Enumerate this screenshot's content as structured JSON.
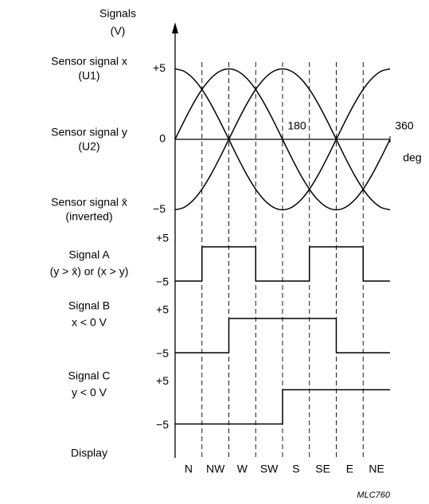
{
  "y_axis_label": [
    "Signals",
    "(V)"
  ],
  "sensor_plot": {
    "xlim": [
      0,
      360
    ],
    "ylim": [
      -5,
      5
    ],
    "yticks": [
      {
        "value": 5,
        "label": "+5"
      },
      0,
      {
        "value": -5,
        "label": "−5"
      }
    ],
    "xticks": [
      180,
      360
    ],
    "x_unit": "deg",
    "x": [
      0,
      15,
      30,
      45,
      60,
      75,
      90,
      105,
      120,
      135,
      150,
      165,
      180,
      195,
      210,
      225,
      240,
      255,
      270,
      285,
      300,
      315,
      330,
      345,
      360
    ],
    "series": [
      {
        "name": "Sensor signal x",
        "sublabel": "(U1)",
        "values": [
          5,
          4.83,
          4.33,
          3.54,
          2.5,
          1.29,
          0,
          -1.29,
          -2.5,
          -3.54,
          -4.33,
          -4.83,
          -5,
          -4.83,
          -4.33,
          -3.54,
          -2.5,
          -1.29,
          0,
          1.29,
          2.5,
          3.54,
          4.33,
          4.83,
          5
        ]
      },
      {
        "name": "Sensor signal y",
        "sublabel": "(U2)",
        "values": [
          0,
          1.29,
          2.5,
          3.54,
          4.33,
          4.83,
          5,
          4.83,
          4.33,
          3.54,
          2.5,
          1.29,
          0,
          -1.29,
          -2.5,
          -3.54,
          -4.33,
          -4.83,
          -5,
          -4.83,
          -4.33,
          -3.54,
          -2.5,
          -1.29,
          0
        ]
      },
      {
        "name": "Sensor signal x̄",
        "sublabel": "(inverted)",
        "values": [
          -5,
          -4.83,
          -4.33,
          -3.54,
          -2.5,
          -1.29,
          0,
          1.29,
          2.5,
          3.54,
          4.33,
          4.83,
          5,
          4.83,
          4.33,
          3.54,
          2.5,
          1.29,
          0,
          -1.29,
          -2.5,
          -3.54,
          -4.33,
          -4.83,
          -5
        ]
      }
    ]
  },
  "sector_edges": [
    0,
    45,
    90,
    135,
    180,
    225,
    270,
    315,
    360
  ],
  "sectors": [
    "N",
    "NW",
    "W",
    "SW",
    "S",
    "SE",
    "E",
    "NE"
  ],
  "signals": [
    {
      "name": "Signal A",
      "condition": "(y > x̄) or (x > y)",
      "yticks": [
        {
          "value": 5,
          "label": "+5"
        },
        {
          "value": -5,
          "label": "−5"
        }
      ],
      "levels": [
        -5,
        5,
        5,
        -5,
        -5,
        5,
        5,
        -5
      ]
    },
    {
      "name": "Signal B",
      "condition": "x < 0 V",
      "yticks": [
        {
          "value": 5,
          "label": "+5"
        },
        {
          "value": -5,
          "label": "−5"
        }
      ],
      "levels": [
        -5,
        -5,
        5,
        5,
        5,
        5,
        -5,
        -5
      ]
    },
    {
      "name": "Signal C",
      "condition": "y < 0 V",
      "yticks": [
        {
          "value": 5,
          "label": "+5"
        },
        {
          "value": -5,
          "label": "−5"
        }
      ],
      "levels": [
        -5,
        -5,
        -5,
        -5,
        5,
        5,
        5,
        5
      ]
    }
  ],
  "display_label": "Display",
  "figure_id": "MLC760"
}
